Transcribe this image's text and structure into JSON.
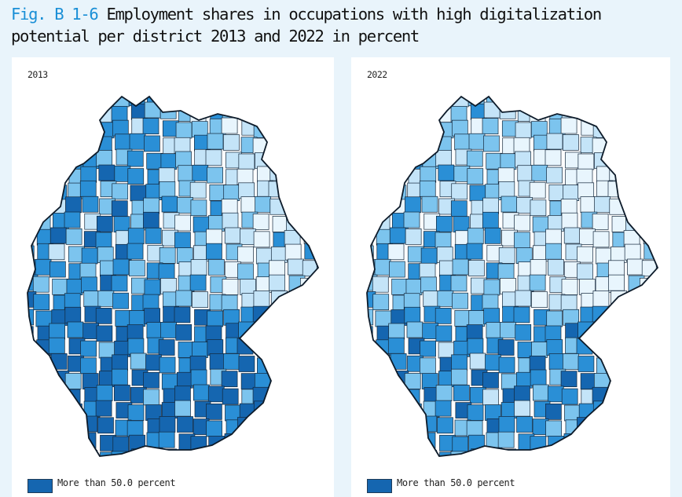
{
  "figure": {
    "label": "Fig. B 1-6",
    "title": "Employment shares in occupations with high digitalization potential per district 2013 and 2022 in percent"
  },
  "chart_data": [
    {
      "type": "choropleth-map",
      "region": "Germany",
      "unit": "districts",
      "title": "2013",
      "legend": [
        {
          "label": "More than 50.0 percent",
          "color": "#1566b0"
        }
      ],
      "classes": [
        {
          "color": "#1566b0"
        },
        {
          "color": "#2a8fd6"
        },
        {
          "color": "#7cc4ee"
        },
        {
          "color": "#c4e4f8"
        },
        {
          "color": "#e8f5fd"
        }
      ]
    },
    {
      "type": "choropleth-map",
      "region": "Germany",
      "unit": "districts",
      "title": "2022",
      "legend": [
        {
          "label": "More than 50.0 percent",
          "color": "#1566b0"
        }
      ],
      "classes": [
        {
          "color": "#1566b0"
        },
        {
          "color": "#2a8fd6"
        },
        {
          "color": "#7cc4ee"
        },
        {
          "color": "#c4e4f8"
        },
        {
          "color": "#e8f5fd"
        }
      ]
    }
  ]
}
